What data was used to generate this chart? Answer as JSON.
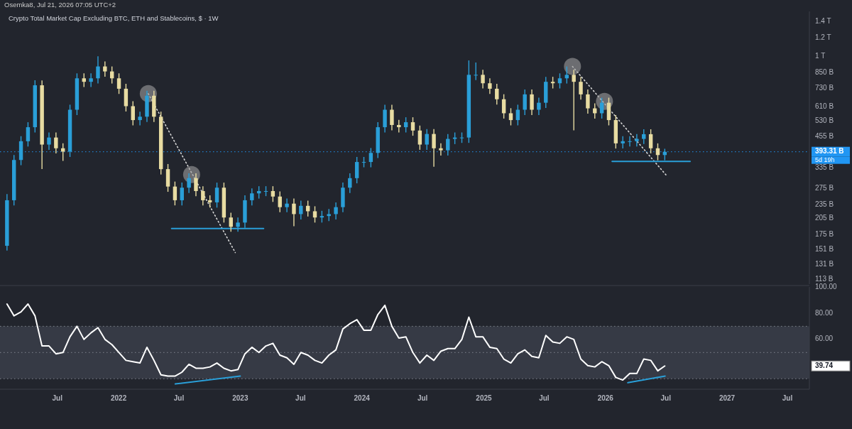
{
  "chart_data": [
    {
      "type": "candlestick",
      "title": "Crypto Total Market Cap Excluding BTC, ETH and Stablecoins, $ · 1W",
      "annotations": [
        "Osemka8, Jul 21, 2026 07:05 UTC+2"
      ],
      "log": "y",
      "tick_labels": "y",
      "xlim": [
        "2021-01-10",
        "2027-09-05"
      ],
      "ylim": [
        108000000000.0,
        1550000000000.0
      ],
      "yticks": [
        {
          "value": 113000000000.0,
          "label": "113 B"
        },
        {
          "value": 131000000000.0,
          "label": "131 B"
        },
        {
          "value": 151000000000.0,
          "label": "151 B"
        },
        {
          "value": 175000000000.0,
          "label": "175 B"
        },
        {
          "value": 205000000000.0,
          "label": "205 B"
        },
        {
          "value": 235000000000.0,
          "label": "235 B"
        },
        {
          "value": 275000000000.0,
          "label": "275 B"
        },
        {
          "value": 335000000000.0,
          "label": "335 B"
        },
        {
          "value": 393310000000.0,
          "label": "393.31 B"
        },
        {
          "value": 455000000000.0,
          "label": "455 B"
        },
        {
          "value": 530000000000.0,
          "label": "530 B"
        },
        {
          "value": 610000000000.0,
          "label": "610 B"
        },
        {
          "value": 730000000000.0,
          "label": "730 B"
        },
        {
          "value": 850000000000.0,
          "label": "850 B"
        },
        {
          "value": 1000000000000.0,
          "label": "1 T"
        },
        {
          "value": 1200000000000.0,
          "label": "1.2 T"
        },
        {
          "value": 1400000000000.0,
          "label": "1.4 T"
        }
      ],
      "ref_lines": [
        {
          "axis": "y",
          "value": 393310000000.0,
          "label": "5d 19h",
          "color": "#2196f3",
          "line_style": "dotted"
        }
      ],
      "x": [
        "2021-01-31",
        "2021-02-21",
        "2021-03-14",
        "2021-04-04",
        "2021-04-25",
        "2021-05-16",
        "2021-06-06",
        "2021-06-27",
        "2021-07-18",
        "2021-08-08",
        "2021-08-29",
        "2021-09-19",
        "2021-10-10",
        "2021-10-31",
        "2021-11-21",
        "2021-12-12",
        "2022-01-02",
        "2022-01-23",
        "2022-02-13",
        "2022-03-06",
        "2022-03-27",
        "2022-04-17",
        "2022-05-08",
        "2022-05-29",
        "2022-06-19",
        "2022-07-10",
        "2022-07-31",
        "2022-08-21",
        "2022-09-11",
        "2022-10-02",
        "2022-10-23",
        "2022-11-13",
        "2022-12-04",
        "2022-12-25",
        "2023-01-15",
        "2023-02-05",
        "2023-02-26",
        "2023-03-19",
        "2023-04-09",
        "2023-04-30",
        "2023-05-21",
        "2023-06-11",
        "2023-07-02",
        "2023-07-23",
        "2023-08-13",
        "2023-09-03",
        "2023-09-24",
        "2023-10-15",
        "2023-11-05",
        "2023-11-26",
        "2023-12-17",
        "2024-01-07",
        "2024-01-28",
        "2024-02-18",
        "2024-03-10",
        "2024-03-31",
        "2024-04-21",
        "2024-05-12",
        "2024-06-02",
        "2024-06-23",
        "2024-07-14",
        "2024-08-04",
        "2024-08-25",
        "2024-09-15",
        "2024-10-06",
        "2024-10-27",
        "2024-11-17",
        "2024-12-08",
        "2024-12-29",
        "2025-01-19",
        "2025-02-09",
        "2025-03-02",
        "2025-03-23",
        "2025-04-13",
        "2025-05-04",
        "2025-05-25",
        "2025-06-15",
        "2025-07-06",
        "2025-07-27",
        "2025-08-17",
        "2025-09-07",
        "2025-09-28",
        "2025-10-19",
        "2025-11-09",
        "2025-11-30",
        "2025-12-21",
        "2026-01-11",
        "2026-02-01",
        "2026-02-22",
        "2026-03-15",
        "2026-04-05",
        "2026-04-26",
        "2026-05-17",
        "2026-06-07",
        "2026-06-28"
      ],
      "ohlc": [
        [
          157000000000.0,
          260000000000.0,
          150000000000.0,
          245000000000.0
        ],
        [
          245000000000.0,
          381000000000.0,
          233000000000.0,
          363000000000.0
        ],
        [
          363000000000.0,
          458000000000.0,
          345000000000.0,
          436000000000.0
        ],
        [
          436000000000.0,
          525000000000.0,
          414000000000.0,
          500000000000.0
        ],
        [
          500000000000.0,
          791000000000.0,
          475000000000.0,
          753000000000.0
        ],
        [
          753000000000.0,
          790000000000.0,
          332000000000.0,
          422000000000.0
        ],
        [
          422000000000.0,
          475000000000.0,
          401000000000.0,
          452000000000.0
        ],
        [
          452000000000.0,
          475000000000.0,
          387000000000.0,
          407000000000.0
        ],
        [
          407000000000.0,
          427000000000.0,
          360000000000.0,
          394000000000.0
        ],
        [
          394000000000.0,
          623000000000.0,
          374000000000.0,
          593000000000.0
        ],
        [
          593000000000.0,
          846000000000.0,
          563000000000.0,
          806000000000.0
        ],
        [
          806000000000.0,
          846000000000.0,
          740000000000.0,
          779000000000.0
        ],
        [
          779000000000.0,
          846000000000.0,
          740000000000.0,
          806000000000.0
        ],
        [
          806000000000.0,
          1000000000000.0,
          766000000000.0,
          905000000000.0
        ],
        [
          905000000000.0,
          950000000000.0,
          819000000000.0,
          862000000000.0
        ],
        [
          862000000000.0,
          905000000000.0,
          766000000000.0,
          806000000000.0
        ],
        [
          806000000000.0,
          846000000000.0,
          692000000000.0,
          728000000000.0
        ],
        [
          728000000000.0,
          764000000000.0,
          583000000000.0,
          614000000000.0
        ],
        [
          614000000000.0,
          645000000000.0,
          509000000000.0,
          536000000000.0
        ],
        [
          536000000000.0,
          582000000000.0,
          509000000000.0,
          554000000000.0
        ],
        [
          554000000000.0,
          714000000000.0,
          526000000000.0,
          680000000000.0
        ],
        [
          680000000000.0,
          714000000000.0,
          526000000000.0,
          554000000000.0
        ],
        [
          554000000000.0,
          582000000000.0,
          315000000000.0,
          332000000000.0
        ],
        [
          332000000000.0,
          349000000000.0,
          266000000000.0,
          280000000000.0
        ],
        [
          280000000000.0,
          294000000000.0,
          233000000000.0,
          245000000000.0
        ],
        [
          245000000000.0,
          291000000000.0,
          233000000000.0,
          277000000000.0
        ],
        [
          277000000000.0,
          319000000000.0,
          263000000000.0,
          304000000000.0
        ],
        [
          304000000000.0,
          319000000000.0,
          255000000000.0,
          268000000000.0
        ],
        [
          268000000000.0,
          281000000000.0,
          233000000000.0,
          245000000000.0
        ],
        [
          245000000000.0,
          257000000000.0,
          228000000000.0,
          240000000000.0
        ],
        [
          240000000000.0,
          291000000000.0,
          228000000000.0,
          277000000000.0
        ],
        [
          277000000000.0,
          291000000000.0,
          197000000000.0,
          207000000000.0
        ],
        [
          207000000000.0,
          217000000000.0,
          180000000000.0,
          189000000000.0
        ],
        [
          189000000000.0,
          207000000000.0,
          180000000000.0,
          197000000000.0
        ],
        [
          197000000000.0,
          257000000000.0,
          187000000000.0,
          245000000000.0
        ],
        [
          245000000000.0,
          275000000000.0,
          233000000000.0,
          262000000000.0
        ],
        [
          262000000000.0,
          281000000000.0,
          249000000000.0,
          268000000000.0
        ],
        [
          268000000000.0,
          281000000000.0,
          255000000000.0,
          268000000000.0
        ],
        [
          268000000000.0,
          281000000000.0,
          241000000000.0,
          254000000000.0
        ],
        [
          254000000000.0,
          267000000000.0,
          218000000000.0,
          229000000000.0
        ],
        [
          229000000000.0,
          249000000000.0,
          218000000000.0,
          237000000000.0
        ],
        [
          237000000000.0,
          249000000000.0,
          190000000000.0,
          214000000000.0
        ],
        [
          214000000000.0,
          244000000000.0,
          203000000000.0,
          232000000000.0
        ],
        [
          232000000000.0,
          244000000000.0,
          209000000000.0,
          220000000000.0
        ],
        [
          220000000000.0,
          231000000000.0,
          197000000000.0,
          207000000000.0
        ],
        [
          207000000000.0,
          221000000000.0,
          197000000000.0,
          210000000000.0
        ],
        [
          210000000000.0,
          225000000000.0,
          200000000000.0,
          214000000000.0
        ],
        [
          214000000000.0,
          240000000000.0,
          203000000000.0,
          229000000000.0
        ],
        [
          229000000000.0,
          291000000000.0,
          218000000000.0,
          277000000000.0
        ],
        [
          277000000000.0,
          319000000000.0,
          263000000000.0,
          304000000000.0
        ],
        [
          304000000000.0,
          374000000000.0,
          289000000000.0,
          356000000000.0
        ],
        [
          356000000000.0,
          374000000000.0,
          338000000000.0,
          356000000000.0
        ],
        [
          356000000000.0,
          408000000000.0,
          338000000000.0,
          389000000000.0
        ],
        [
          389000000000.0,
          525000000000.0,
          370000000000.0,
          500000000000.0
        ],
        [
          500000000000.0,
          623000000000.0,
          475000000000.0,
          593000000000.0
        ],
        [
          593000000000.0,
          623000000000.0,
          485000000000.0,
          511000000000.0
        ],
        [
          511000000000.0,
          537000000000.0,
          475000000000.0,
          500000000000.0
        ],
        [
          500000000000.0,
          551000000000.0,
          475000000000.0,
          525000000000.0
        ],
        [
          525000000000.0,
          551000000000.0,
          460000000000.0,
          484000000000.0
        ],
        [
          484000000000.0,
          508000000000.0,
          401000000000.0,
          422000000000.0
        ],
        [
          422000000000.0,
          491000000000.0,
          401000000000.0,
          468000000000.0
        ],
        [
          468000000000.0,
          491000000000.0,
          340000000000.0,
          407000000000.0
        ],
        [
          407000000000.0,
          427000000000.0,
          379000000000.0,
          399000000000.0
        ],
        [
          399000000000.0,
          468000000000.0,
          379000000000.0,
          446000000000.0
        ],
        [
          446000000000.0,
          475000000000.0,
          424000000000.0,
          452000000000.0
        ],
        [
          452000000000.0,
          475000000000.0,
          429000000000.0,
          452000000000.0
        ],
        [
          452000000000.0,
          960000000000.0,
          429000000000.0,
          834000000000.0
        ],
        [
          834000000000.0,
          940000000000.0,
          792000000000.0,
          834000000000.0
        ],
        [
          834000000000.0,
          876000000000.0,
          730000000000.0,
          768000000000.0
        ],
        [
          768000000000.0,
          806000000000.0,
          692000000000.0,
          728000000000.0
        ],
        [
          728000000000.0,
          764000000000.0,
          624000000000.0,
          657000000000.0
        ],
        [
          657000000000.0,
          690000000000.0,
          544000000000.0,
          573000000000.0
        ],
        [
          573000000000.0,
          602000000000.0,
          509000000000.0,
          536000000000.0
        ],
        [
          536000000000.0,
          623000000000.0,
          509000000000.0,
          593000000000.0
        ],
        [
          593000000000.0,
          723000000000.0,
          563000000000.0,
          689000000000.0
        ],
        [
          689000000000.0,
          723000000000.0,
          563000000000.0,
          593000000000.0
        ],
        [
          593000000000.0,
          667000000000.0,
          563000000000.0,
          635000000000.0
        ],
        [
          635000000000.0,
          818000000000.0,
          603000000000.0,
          779000000000.0
        ],
        [
          779000000000.0,
          818000000000.0,
          730000000000.0,
          768000000000.0
        ],
        [
          768000000000.0,
          846000000000.0,
          730000000000.0,
          806000000000.0
        ],
        [
          806000000000.0,
          905000000000.0,
          766000000000.0,
          834000000000.0
        ],
        [
          834000000000.0,
          876000000000.0,
          485000000000.0,
          779000000000.0
        ],
        [
          779000000000.0,
          818000000000.0,
          655000000000.0,
          689000000000.0
        ],
        [
          689000000000.0,
          723000000000.0,
          571000000000.0,
          601000000000.0
        ],
        [
          601000000000.0,
          631000000000.0,
          544000000000.0,
          573000000000.0
        ],
        [
          573000000000.0,
          667000000000.0,
          544000000000.0,
          635000000000.0
        ],
        [
          635000000000.0,
          667000000000.0,
          509000000000.0,
          536000000000.0
        ],
        [
          536000000000.0,
          563000000000.0,
          406000000000.0,
          427000000000.0
        ],
        [
          427000000000.0,
          458000000000.0,
          406000000000.0,
          436000000000.0
        ],
        [
          436000000000.0,
          458000000000.0,
          414000000000.0,
          436000000000.0
        ],
        [
          436000000000.0,
          468000000000.0,
          414000000000.0,
          446000000000.0
        ],
        [
          446000000000.0,
          490000000000.0,
          424000000000.0,
          467000000000.0
        ],
        [
          467000000000.0,
          490000000000.0,
          387000000000.0,
          407000000000.0
        ],
        [
          407000000000.0,
          427000000000.0,
          362000000000.0,
          381000000000.0
        ],
        [
          381000000000.0,
          405000000000.0,
          362000000000.0,
          393310000000.0
        ]
      ],
      "colors": [
        "#2a9fd8",
        "#2a9fd8",
        "#2a9fd8",
        "#2a9fd8",
        "#2a9fd8",
        "#e8dca2",
        "#2a9fd8",
        "#e8dca2",
        "#e8dca2",
        "#2a9fd8",
        "#2a9fd8",
        "#e8dca2",
        "#2a9fd8",
        "#2a9fd8",
        "#e8dca2",
        "#e8dca2",
        "#e8dca2",
        "#e8dca2",
        "#e8dca2",
        "#2a9fd8",
        "#2a9fd8",
        "#e8dca2",
        "#e8dca2",
        "#e8dca2",
        "#e8dca2",
        "#2a9fd8",
        "#2a9fd8",
        "#e8dca2",
        "#e8dca2",
        "#e8dca2",
        "#2a9fd8",
        "#e8dca2",
        "#e8dca2",
        "#2a9fd8",
        "#2a9fd8",
        "#2a9fd8",
        "#2a9fd8",
        "#2a9fd8",
        "#e8dca2",
        "#e8dca2",
        "#2a9fd8",
        "#e8dca2",
        "#2a9fd8",
        "#e8dca2",
        "#e8dca2",
        "#2a9fd8",
        "#2a9fd8",
        "#2a9fd8",
        "#2a9fd8",
        "#2a9fd8",
        "#2a9fd8",
        "#2a9fd8",
        "#2a9fd8",
        "#2a9fd8",
        "#2a9fd8",
        "#e8dca2",
        "#e8dca2",
        "#2a9fd8",
        "#e8dca2",
        "#e8dca2",
        "#2a9fd8",
        "#e8dca2",
        "#e8dca2",
        "#2a9fd8",
        "#2a9fd8",
        "#2a9fd8",
        "#2a9fd8",
        "#2a9fd8",
        "#e8dca2",
        "#e8dca2",
        "#e8dca2",
        "#e8dca2",
        "#e8dca2",
        "#2a9fd8",
        "#2a9fd8",
        "#e8dca2",
        "#2a9fd8",
        "#2a9fd8",
        "#e8dca2",
        "#2a9fd8",
        "#2a9fd8",
        "#e8dca2",
        "#e8dca2",
        "#e8dca2",
        "#e8dca2",
        "#2a9fd8",
        "#e8dca2",
        "#e8dca2",
        "#2a9fd8",
        "#2a9fd8",
        "#2a9fd8",
        "#2a9fd8",
        "#e8dca2",
        "#e8dca2",
        "#2a9fd8"
      ],
      "series": [
        {
          "type": "line",
          "color": "#d8d8d8",
          "line_style": "dotted",
          "x": [
            "2022-03-31",
            "2022-12-17"
          ],
          "values": [
            694000000000.0,
            147000000000.0
          ]
        },
        {
          "type": "line",
          "color": "#d8d8d8",
          "line_style": "dotted",
          "x": [
            "2025-09-24",
            "2026-07-04"
          ],
          "values": [
            905000000000.0,
            311000000000.0
          ]
        },
        {
          "type": "line",
          "color": "#2a9fd8",
          "line_style": "solid",
          "x": [
            "2022-06-09",
            "2023-03-12"
          ],
          "values": [
            186000000000.0,
            186000000000.0
          ]
        },
        {
          "type": "line",
          "color": "#2a9fd8",
          "line_style": "solid",
          "x": [
            "2026-01-21",
            "2026-09-12"
          ],
          "values": [
            358000000000.0,
            358000000000.0
          ]
        },
        {
          "type": "scatter",
          "color": "#9e9e9e",
          "marker": "circle",
          "x": [
            "2022-03-31",
            "2022-08-08",
            "2025-09-24",
            "2025-12-29"
          ],
          "values": [
            694000000000.0,
            315000000000.0,
            905000000000.0,
            643000000000.0
          ]
        }
      ]
    },
    {
      "type": "line",
      "xlim": [
        "2021-01-10",
        "2027-09-05"
      ],
      "xticks": [
        {
          "value": "2021-07-01",
          "label": "Jul"
        },
        {
          "value": "2022-01-01",
          "label": "2022"
        },
        {
          "value": "2022-07-01",
          "label": "Jul"
        },
        {
          "value": "2023-01-01",
          "label": "2023"
        },
        {
          "value": "2023-07-01",
          "label": "Jul"
        },
        {
          "value": "2024-01-01",
          "label": "2024"
        },
        {
          "value": "2024-07-01",
          "label": "Jul"
        },
        {
          "value": "2025-01-01",
          "label": "2025"
        },
        {
          "value": "2025-07-01",
          "label": "Jul"
        },
        {
          "value": "2026-01-01",
          "label": "2026"
        },
        {
          "value": "2026-07-01",
          "label": "Jul"
        },
        {
          "value": "2027-01-01",
          "label": "2027"
        },
        {
          "value": "2027-07-01",
          "label": "Jul"
        }
      ],
      "ylim": [
        22,
        100
      ],
      "yticks": [
        {
          "value": 39.74,
          "label": "39.74"
        },
        {
          "value": 60,
          "label": "60.00"
        },
        {
          "value": 80,
          "label": "80.00"
        },
        {
          "value": 100,
          "label": "100.00"
        }
      ],
      "bands": [
        {
          "axis": "y",
          "from": 30,
          "to": 70,
          "color": "#363a45"
        }
      ],
      "ref_lines": [
        {
          "axis": "y",
          "value": 70,
          "color": "#80848e",
          "line_style": "dotted"
        },
        {
          "axis": "y",
          "value": 50,
          "color": "#80848e",
          "line_style": "dotted"
        },
        {
          "axis": "y",
          "value": 30,
          "color": "#80848e",
          "line_style": "dotted"
        }
      ],
      "x": [
        "2021-01-31",
        "2021-02-21",
        "2021-03-14",
        "2021-04-04",
        "2021-04-25",
        "2021-05-16",
        "2021-06-06",
        "2021-06-27",
        "2021-07-18",
        "2021-08-08",
        "2021-08-29",
        "2021-09-19",
        "2021-10-10",
        "2021-10-31",
        "2021-11-21",
        "2021-12-12",
        "2022-01-02",
        "2022-01-23",
        "2022-02-13",
        "2022-03-06",
        "2022-03-27",
        "2022-04-17",
        "2022-05-08",
        "2022-05-29",
        "2022-06-19",
        "2022-07-10",
        "2022-07-31",
        "2022-08-21",
        "2022-09-11",
        "2022-10-02",
        "2022-10-23",
        "2022-11-13",
        "2022-12-04",
        "2022-12-25",
        "2023-01-15",
        "2023-02-05",
        "2023-02-26",
        "2023-03-19",
        "2023-04-09",
        "2023-04-30",
        "2023-05-21",
        "2023-06-11",
        "2023-07-02",
        "2023-07-23",
        "2023-08-13",
        "2023-09-03",
        "2023-09-24",
        "2023-10-15",
        "2023-11-05",
        "2023-11-26",
        "2023-12-17",
        "2024-01-07",
        "2024-01-28",
        "2024-02-18",
        "2024-03-10",
        "2024-03-31",
        "2024-04-21",
        "2024-05-12",
        "2024-06-02",
        "2024-06-23",
        "2024-07-14",
        "2024-08-04",
        "2024-08-25",
        "2024-09-15",
        "2024-10-06",
        "2024-10-27",
        "2024-11-17",
        "2024-12-08",
        "2024-12-29",
        "2025-01-19",
        "2025-02-09",
        "2025-03-02",
        "2025-03-23",
        "2025-04-13",
        "2025-05-04",
        "2025-05-25",
        "2025-06-15",
        "2025-07-06",
        "2025-07-27",
        "2025-08-17",
        "2025-09-07",
        "2025-09-28",
        "2025-10-19",
        "2025-11-09",
        "2025-11-30",
        "2025-12-21",
        "2026-01-11",
        "2026-02-01",
        "2026-02-22",
        "2026-03-15",
        "2026-04-05",
        "2026-04-26",
        "2026-05-17",
        "2026-06-07",
        "2026-06-28"
      ],
      "series": [
        {
          "color": "#ffffff",
          "values": [
            87,
            78,
            81,
            87,
            78,
            55,
            55,
            49,
            50,
            62,
            70,
            60,
            65,
            69,
            60,
            56,
            50,
            44,
            43,
            42,
            54,
            44,
            33,
            32,
            32,
            35,
            41,
            38,
            38,
            39,
            42,
            38,
            36,
            37,
            49,
            54,
            50,
            55,
            57,
            48,
            46,
            41,
            50,
            48,
            44,
            42,
            48,
            52,
            68,
            72,
            75,
            67,
            67,
            79,
            86,
            70,
            61,
            62,
            50,
            42,
            48,
            44,
            51,
            53,
            53,
            60,
            77,
            62,
            62,
            54,
            53,
            45,
            42,
            49,
            52,
            47,
            46,
            63,
            58,
            57,
            62,
            60,
            45,
            40,
            39,
            43,
            40,
            31,
            29,
            34,
            34,
            45,
            44,
            36,
            39.74
          ]
        },
        {
          "type": "line",
          "color": "#2a9fd8",
          "x": [
            "2022-06-20",
            "2023-01-01"
          ],
          "values": [
            26,
            32
          ]
        },
        {
          "type": "line",
          "color": "#2a9fd8",
          "x": [
            "2026-03-09",
            "2026-06-29"
          ],
          "values": [
            27,
            32
          ]
        }
      ]
    }
  ]
}
